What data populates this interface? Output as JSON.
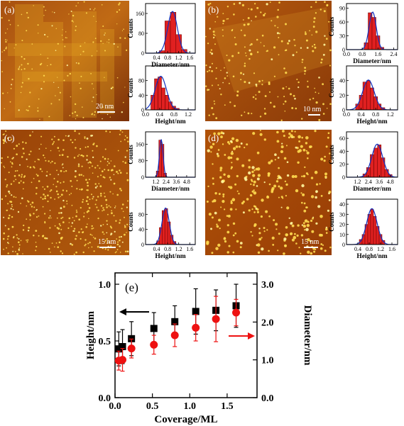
{
  "panels": [
    {
      "label": "(a)",
      "scale": "20 nm",
      "diam": {
        "xlabel": "Diameter/nm",
        "ylabel": "Counts",
        "xlim": [
          0,
          1.8
        ],
        "ylim": [
          0,
          200
        ],
        "xticks": [
          "0.4",
          "0.8",
          "1.2",
          "1.6"
        ],
        "yticks": [
          "0",
          "80",
          "160"
        ],
        "bins": [
          0.6,
          0.8,
          1.0,
          1.2,
          1.4
        ],
        "counts": [
          10,
          130,
          165,
          75,
          15
        ],
        "width": 0.2
      },
      "height": {
        "xlabel": "Height/nm",
        "ylabel": "Counts",
        "xlim": [
          0,
          1.4
        ],
        "ylim": [
          0,
          120
        ],
        "xticks": [
          "0.0",
          "0.4",
          "0.8",
          "1.2"
        ],
        "yticks": [
          "0",
          "40",
          "80"
        ],
        "bins": [
          0.2,
          0.3,
          0.4,
          0.5,
          0.6,
          0.7,
          0.8,
          0.9
        ],
        "counts": [
          40,
          85,
          90,
          60,
          40,
          22,
          10,
          4
        ],
        "width": 0.1
      }
    },
    {
      "label": "(b)",
      "scale": "10 nm",
      "diam": {
        "xlabel": "Diameter/nm",
        "ylabel": "Counts",
        "xlim": [
          0,
          2.6
        ],
        "ylim": [
          0,
          100
        ],
        "xticks": [
          "0.0",
          "0.8",
          "1.6",
          "2.4"
        ],
        "yticks": [
          "0",
          "30",
          "60",
          "90"
        ],
        "bins": [
          1.0,
          1.2,
          1.4,
          1.6,
          1.8
        ],
        "counts": [
          15,
          80,
          70,
          30,
          5
        ],
        "width": 0.2
      },
      "height": {
        "xlabel": "Height/nm",
        "ylabel": "Counts",
        "xlim": [
          0,
          1.4
        ],
        "ylim": [
          0,
          60
        ],
        "xticks": [
          "0.0",
          "0.4",
          "0.8",
          "1.2"
        ],
        "yticks": [
          "0",
          "20",
          "40"
        ],
        "bins": [
          0.3,
          0.4,
          0.5,
          0.6,
          0.7,
          0.8,
          0.9,
          1.0
        ],
        "counts": [
          8,
          20,
          38,
          40,
          30,
          18,
          8,
          3
        ],
        "width": 0.1
      }
    },
    {
      "label": "(c)",
      "scale": "15 nm",
      "diam": {
        "xlabel": "Diameter/nm",
        "ylabel": "Counts",
        "xlim": [
          0,
          5.8
        ],
        "ylim": [
          0,
          220
        ],
        "xticks": [
          "1.2",
          "2.4",
          "3.6",
          "4.8"
        ],
        "yticks": [
          "0",
          "80",
          "160"
        ],
        "bins": [
          1.4,
          1.7,
          2.0,
          2.3
        ],
        "counts": [
          30,
          180,
          160,
          20
        ],
        "width": 0.3
      },
      "height": {
        "xlabel": "Height/nm",
        "ylabel": "Counts",
        "xlim": [
          0,
          1.8
        ],
        "ylim": [
          0,
          120
        ],
        "xticks": [
          "0.4",
          "0.8",
          "1.2",
          "1.6"
        ],
        "yticks": [
          "0",
          "40",
          "80"
        ],
        "bins": [
          0.45,
          0.55,
          0.65,
          0.75,
          0.85,
          0.95,
          1.05
        ],
        "counts": [
          10,
          45,
          90,
          95,
          60,
          25,
          8
        ],
        "width": 0.1
      }
    },
    {
      "label": "(d)",
      "scale": "15 nm",
      "diam": {
        "xlabel": "Diameter/nm",
        "ylabel": "Counts",
        "xlim": [
          0,
          5.6
        ],
        "ylim": [
          0,
          70
        ],
        "xticks": [
          "1.2",
          "2.4",
          "3.6",
          "4.8"
        ],
        "yticks": [
          "0",
          "20",
          "40",
          "60"
        ],
        "bins": [
          2.0,
          2.4,
          2.8,
          3.2,
          3.6,
          4.0,
          4.4,
          4.8
        ],
        "counts": [
          5,
          15,
          35,
          45,
          50,
          30,
          12,
          4
        ],
        "width": 0.4
      },
      "height": {
        "xlabel": "Height/nm",
        "ylabel": "Counts",
        "xlim": [
          0,
          1.8
        ],
        "ylim": [
          0,
          45
        ],
        "xticks": [
          "0.4",
          "0.8",
          "1.2",
          "1.6"
        ],
        "yticks": [
          "0",
          "10",
          "20",
          "30",
          "40"
        ],
        "bins": [
          0.5,
          0.6,
          0.7,
          0.8,
          0.9,
          1.0,
          1.1,
          1.2,
          1.3
        ],
        "counts": [
          5,
          10,
          20,
          30,
          35,
          28,
          18,
          10,
          4
        ],
        "width": 0.1
      }
    }
  ],
  "chart_data": {
    "type": "scatter",
    "label": "(e)",
    "xlabel": "Coverage/ML",
    "ylabel": "Height/nm",
    "y2label": "Diameter/nm",
    "xlim": [
      0,
      1.9
    ],
    "ylim": [
      0,
      1.1
    ],
    "y2lim": [
      0,
      3.3
    ],
    "xticks": [
      "0.0",
      "0.5",
      "1.0",
      "1.5"
    ],
    "yticks": [
      "0.0",
      "0.5",
      "1.0"
    ],
    "y2ticks": [
      "0.0",
      "1.0",
      "2.0",
      "3.0"
    ],
    "series": [
      {
        "axis": "left",
        "color": "#000000",
        "marker": "square",
        "x": [
          0.05,
          0.1,
          0.22,
          0.52,
          0.8,
          1.08,
          1.35,
          1.62
        ],
        "y": [
          0.43,
          0.45,
          0.52,
          0.61,
          0.67,
          0.76,
          0.77,
          0.81
        ],
        "err": [
          0.15,
          0.15,
          0.15,
          0.14,
          0.14,
          0.2,
          0.18,
          0.19
        ]
      },
      {
        "axis": "right",
        "color": "#ee1111",
        "marker": "circle",
        "x": [
          0.05,
          0.1,
          0.22,
          0.52,
          0.8,
          1.08,
          1.35,
          1.62
        ],
        "y": [
          0.98,
          1.0,
          1.3,
          1.4,
          1.65,
          1.85,
          2.08,
          2.25
        ],
        "err": [
          0.25,
          0.3,
          0.25,
          0.25,
          0.3,
          0.35,
          0.6,
          0.35
        ]
      }
    ],
    "colors": {
      "left": "#000000",
      "right": "#ee1111"
    }
  }
}
